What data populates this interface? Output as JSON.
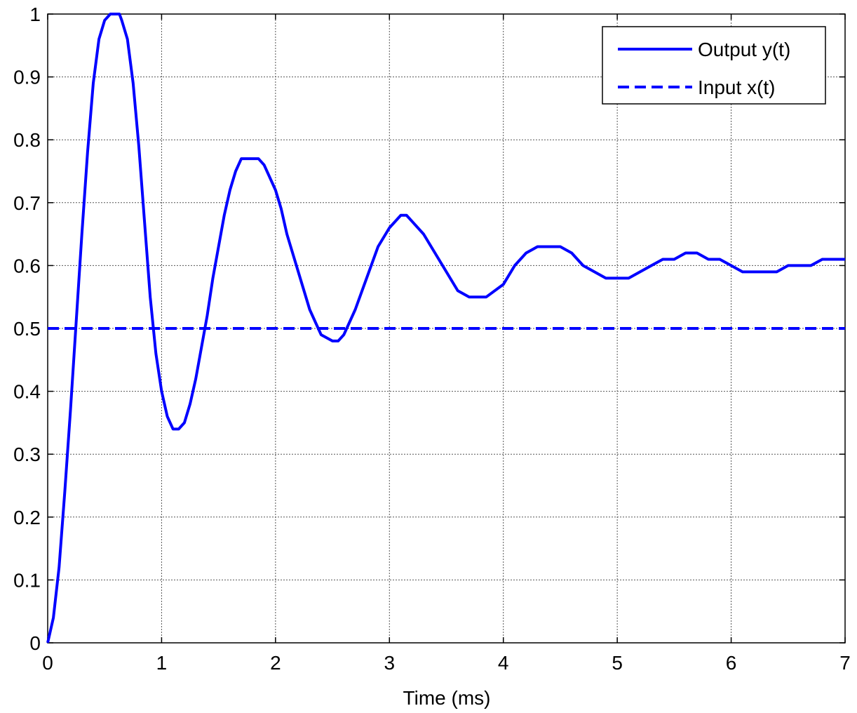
{
  "chart_data": {
    "type": "line",
    "title": "",
    "xlabel": "Time (ms)",
    "ylabel": "",
    "xlim": [
      0,
      7
    ],
    "ylim": [
      0,
      1
    ],
    "grid": true,
    "legend_position": "top-right",
    "xticks": [
      0,
      1,
      2,
      3,
      4,
      5,
      6,
      7
    ],
    "yticks": [
      0,
      0.1,
      0.2,
      0.3,
      0.4,
      0.5,
      0.6,
      0.7,
      0.8,
      0.9,
      1
    ],
    "series": [
      {
        "name": "Output y(t)",
        "style": "solid",
        "color": "#0000FF",
        "x": [
          0,
          0.05,
          0.1,
          0.15,
          0.2,
          0.25,
          0.3,
          0.35,
          0.4,
          0.45,
          0.5,
          0.55,
          0.6,
          0.63,
          0.65,
          0.7,
          0.75,
          0.8,
          0.85,
          0.9,
          0.95,
          1.0,
          1.05,
          1.1,
          1.15,
          1.2,
          1.25,
          1.3,
          1.35,
          1.4,
          1.45,
          1.5,
          1.55,
          1.6,
          1.65,
          1.7,
          1.75,
          1.8,
          1.85,
          1.9,
          1.95,
          2.0,
          2.05,
          2.1,
          2.2,
          2.3,
          2.4,
          2.5,
          2.55,
          2.6,
          2.7,
          2.8,
          2.9,
          3.0,
          3.1,
          3.15,
          3.2,
          3.3,
          3.4,
          3.5,
          3.6,
          3.7,
          3.78,
          3.85,
          4.0,
          4.1,
          4.2,
          4.3,
          4.4,
          4.5,
          4.6,
          4.7,
          4.8,
          4.9,
          5.0,
          5.1,
          5.2,
          5.3,
          5.4,
          5.5,
          5.6,
          5.7,
          5.8,
          5.9,
          6.0,
          6.1,
          6.2,
          6.3,
          6.4,
          6.5,
          6.6,
          6.7,
          6.8,
          6.9,
          7.0
        ],
        "values": [
          0,
          0.04,
          0.12,
          0.24,
          0.37,
          0.51,
          0.65,
          0.78,
          0.89,
          0.96,
          0.99,
          1.0,
          1.0,
          1.0,
          0.99,
          0.96,
          0.89,
          0.79,
          0.67,
          0.55,
          0.46,
          0.4,
          0.36,
          0.34,
          0.34,
          0.35,
          0.38,
          0.42,
          0.47,
          0.52,
          0.58,
          0.63,
          0.68,
          0.72,
          0.75,
          0.77,
          0.77,
          0.77,
          0.77,
          0.76,
          0.74,
          0.72,
          0.69,
          0.65,
          0.59,
          0.53,
          0.49,
          0.48,
          0.48,
          0.49,
          0.53,
          0.58,
          0.63,
          0.66,
          0.68,
          0.68,
          0.67,
          0.65,
          0.62,
          0.59,
          0.56,
          0.55,
          0.55,
          0.55,
          0.57,
          0.6,
          0.62,
          0.63,
          0.63,
          0.63,
          0.62,
          0.6,
          0.59,
          0.58,
          0.58,
          0.58,
          0.59,
          0.6,
          0.61,
          0.61,
          0.62,
          0.62,
          0.61,
          0.61,
          0.6,
          0.59,
          0.59,
          0.59,
          0.59,
          0.6,
          0.6,
          0.6,
          0.61,
          0.61,
          0.61
        ]
      },
      {
        "name": "Input x(t)",
        "style": "dashed",
        "color": "#0000FF",
        "x": [
          0,
          7
        ],
        "values": [
          0.5,
          0.5
        ]
      }
    ]
  }
}
